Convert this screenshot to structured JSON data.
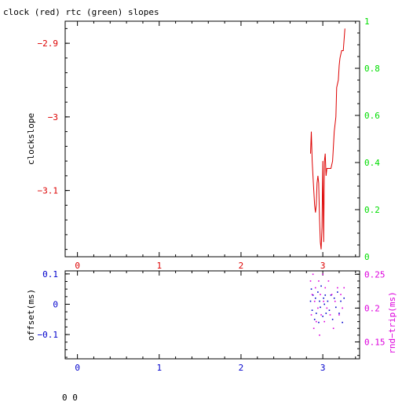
{
  "title": "clock (red) rtc (green) slopes",
  "footer": "0 0",
  "colors": {
    "axis": "#000000",
    "clock": "#dd0000",
    "rtc": "#00dd00",
    "offset": "#0000cc",
    "rtt": "#dd00dd"
  },
  "chart_data": [
    {
      "type": "line",
      "name": "clock-rtc-slopes",
      "ylabel": "clockslope",
      "x_ticks": [
        "0",
        "1",
        "2",
        "3"
      ],
      "xlim": [
        -0.15,
        3.45
      ],
      "ylim": [
        -3.19,
        -2.87
      ],
      "y_ticks": [
        {
          "value": -2.9,
          "label": "−2.9"
        },
        {
          "value": -3.0,
          "label": "−3"
        },
        {
          "value": -3.1,
          "label": "−3.1"
        }
      ],
      "y2lim": [
        0,
        1
      ],
      "y2_ticks": [
        {
          "value": 0,
          "label": "0"
        },
        {
          "value": 0.2,
          "label": "0.2"
        },
        {
          "value": 0.4,
          "label": "0.4"
        },
        {
          "value": 0.6,
          "label": "0.6"
        },
        {
          "value": 0.8,
          "label": "0.8"
        },
        {
          "value": 1,
          "label": "1"
        }
      ],
      "series": [
        {
          "color_key": "clock",
          "points": [
            [
              2.85,
              -3.05
            ],
            [
              2.86,
              -3.02
            ],
            [
              2.87,
              -3.06
            ],
            [
              2.88,
              -3.08
            ],
            [
              2.9,
              -3.12
            ],
            [
              2.91,
              -3.13
            ],
            [
              2.92,
              -3.12
            ],
            [
              2.93,
              -3.09
            ],
            [
              2.94,
              -3.08
            ],
            [
              2.95,
              -3.09
            ],
            [
              2.96,
              -3.14
            ],
            [
              2.97,
              -3.17
            ],
            [
              2.98,
              -3.18
            ],
            [
              2.99,
              -3.15
            ],
            [
              3.0,
              -3.06
            ],
            [
              3.01,
              -3.17
            ],
            [
              3.02,
              -3.06
            ],
            [
              3.03,
              -3.05
            ],
            [
              3.04,
              -3.08
            ],
            [
              3.05,
              -3.07
            ],
            [
              3.06,
              -3.07
            ],
            [
              3.08,
              -3.07
            ],
            [
              3.1,
              -3.07
            ],
            [
              3.12,
              -3.06
            ],
            [
              3.14,
              -3.02
            ],
            [
              3.16,
              -3.0
            ],
            [
              3.17,
              -2.96
            ],
            [
              3.19,
              -2.95
            ],
            [
              3.2,
              -2.93
            ],
            [
              3.21,
              -2.92
            ],
            [
              3.23,
              -2.91
            ],
            [
              3.25,
              -2.91
            ],
            [
              3.27,
              -2.88
            ]
          ]
        }
      ]
    },
    {
      "type": "scatter",
      "name": "offset-rtt",
      "ylabel": "offset(ms)",
      "y2label": "rnd−trip(ms)",
      "x_ticks": [
        "0",
        "1",
        "2",
        "3"
      ],
      "xlim": [
        -0.15,
        3.45
      ],
      "ylim": [
        -0.18,
        0.11
      ],
      "y_ticks": [
        {
          "value": 0.1,
          "label": "0.1"
        },
        {
          "value": 0,
          "label": "0"
        },
        {
          "value": -0.1,
          "label": "−0.1"
        }
      ],
      "y2lim": [
        0.125,
        0.255
      ],
      "y2_ticks": [
        {
          "value": 0.25,
          "label": "0.25"
        },
        {
          "value": 0.2,
          "label": "0.2"
        },
        {
          "value": 0.15,
          "label": "0.15"
        }
      ],
      "series": [
        {
          "color_key": "offset",
          "points": [
            [
              2.85,
              0.01
            ],
            [
              2.86,
              0.05
            ],
            [
              2.87,
              -0.02
            ],
            [
              2.88,
              0.03
            ],
            [
              2.9,
              -0.05
            ],
            [
              2.91,
              0.02
            ],
            [
              2.92,
              -0.03
            ],
            [
              2.94,
              0.04
            ],
            [
              2.95,
              -0.06
            ],
            [
              2.96,
              0.01
            ],
            [
              2.97,
              -0.01
            ],
            [
              2.98,
              0.06
            ],
            [
              3.0,
              -0.04
            ],
            [
              3.01,
              0.02
            ],
            [
              3.02,
              0.0
            ],
            [
              3.03,
              0.03
            ],
            [
              3.04,
              -0.03
            ],
            [
              3.06,
              0.01
            ],
            [
              3.08,
              -0.02
            ],
            [
              3.1,
              0.03
            ],
            [
              3.12,
              -0.05
            ],
            [
              3.14,
              0.02
            ],
            [
              3.16,
              -0.01
            ],
            [
              3.18,
              0.04
            ],
            [
              3.2,
              -0.03
            ],
            [
              3.22,
              0.01
            ],
            [
              3.24,
              -0.06
            ],
            [
              3.26,
              0.02
            ]
          ]
        },
        {
          "color_key": "rtt",
          "points": [
            [
              2.85,
              0.24
            ],
            [
              2.86,
              0.19
            ],
            [
              2.87,
              0.22
            ],
            [
              2.88,
              0.25
            ],
            [
              2.89,
              0.17
            ],
            [
              2.9,
              0.21
            ],
            [
              2.91,
              0.23
            ],
            [
              2.92,
              0.18
            ],
            [
              2.94,
              0.2
            ],
            [
              2.95,
              0.24
            ],
            [
              2.96,
              0.16
            ],
            [
              2.97,
              0.22
            ],
            [
              2.98,
              0.19
            ],
            [
              3.0,
              0.25
            ],
            [
              3.01,
              0.21
            ],
            [
              3.02,
              0.18
            ],
            [
              3.03,
              0.23
            ],
            [
              3.05,
              0.2
            ],
            [
              3.07,
              0.24
            ],
            [
              3.09,
              0.19
            ],
            [
              3.11,
              0.22
            ],
            [
              3.13,
              0.17
            ],
            [
              3.15,
              0.21
            ],
            [
              3.18,
              0.23
            ],
            [
              3.2,
              0.19
            ],
            [
              3.22,
              0.22
            ],
            [
              3.24,
              0.2
            ],
            [
              3.26,
              0.23
            ]
          ]
        }
      ]
    }
  ]
}
